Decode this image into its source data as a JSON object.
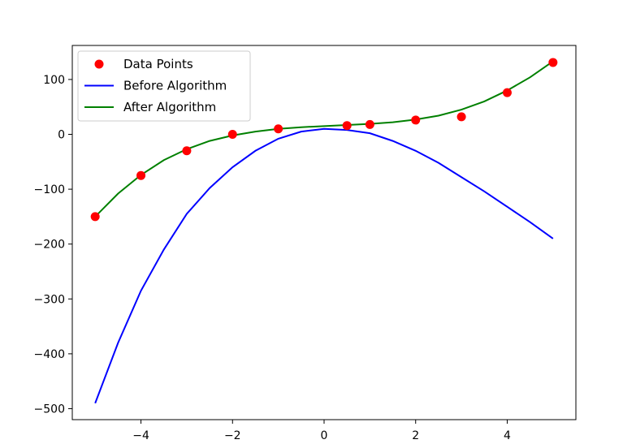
{
  "chart_data": {
    "type": "line",
    "xlim": [
      -5.5,
      5.5
    ],
    "ylim": [
      -520,
      162
    ],
    "x_ticks": [
      {
        "value": -4,
        "label": "−4"
      },
      {
        "value": -2,
        "label": "−2"
      },
      {
        "value": 0,
        "label": "0"
      },
      {
        "value": 2,
        "label": "2"
      },
      {
        "value": 4,
        "label": "4"
      }
    ],
    "y_ticks": [
      {
        "value": 100,
        "label": "100"
      },
      {
        "value": 0,
        "label": "0"
      },
      {
        "value": -100,
        "label": "−100"
      },
      {
        "value": -200,
        "label": "−200"
      },
      {
        "value": -300,
        "label": "−300"
      },
      {
        "value": -400,
        "label": "−400"
      },
      {
        "value": -500,
        "label": "−500"
      }
    ],
    "grid": false,
    "legend_position": "top-left",
    "scatter": {
      "name": "Data Points",
      "color": "#ff0000",
      "points": [
        {
          "x": -5,
          "y": -150
        },
        {
          "x": -4,
          "y": -75
        },
        {
          "x": -3,
          "y": -30
        },
        {
          "x": -2,
          "y": 0
        },
        {
          "x": -1,
          "y": 10
        },
        {
          "x": 0.5,
          "y": 16
        },
        {
          "x": 1,
          "y": 18
        },
        {
          "x": 2,
          "y": 26
        },
        {
          "x": 3,
          "y": 32
        },
        {
          "x": 4,
          "y": 76
        },
        {
          "x": 5,
          "y": 131
        }
      ]
    },
    "series": [
      {
        "name": "Before Algorithm",
        "color": "#0000ff",
        "x": [
          -5,
          -4.5,
          -4,
          -3.5,
          -3,
          -2.5,
          -2,
          -1.5,
          -1,
          -0.5,
          0,
          0.5,
          1,
          1.5,
          2,
          2.5,
          3,
          3.5,
          4,
          4.5,
          5
        ],
        "y": [
          -490,
          -380,
          -285,
          -210,
          -145,
          -98,
          -60,
          -30,
          -8,
          5,
          10,
          8,
          2,
          -12,
          -30,
          -52,
          -78,
          -104,
          -132,
          -160,
          -190
        ]
      },
      {
        "name": "After Algorithm",
        "color": "#008000",
        "x": [
          -5,
          -4.5,
          -4,
          -3.5,
          -3,
          -2.5,
          -2,
          -1.5,
          -1,
          -0.5,
          0,
          0.5,
          1,
          1.5,
          2,
          2.5,
          3,
          3.5,
          4,
          4.5,
          5
        ],
        "y": [
          -150,
          -108,
          -74,
          -47,
          -27,
          -12,
          -2,
          5,
          10,
          13,
          15,
          17,
          19,
          22,
          27,
          34,
          45,
          60,
          80,
          104,
          133
        ]
      }
    ]
  }
}
